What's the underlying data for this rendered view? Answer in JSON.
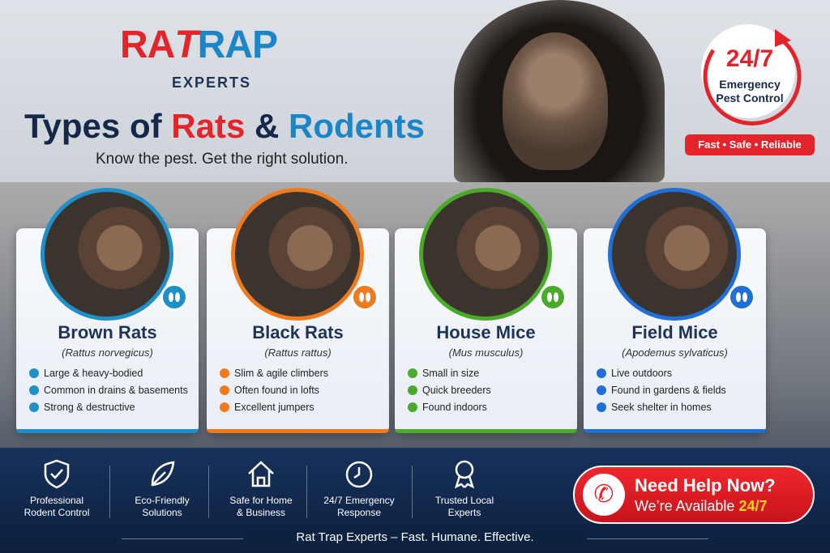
{
  "logo": {
    "part1": "RA",
    "mark": "T",
    "part2": "RAP",
    "sub": "EXPERTS"
  },
  "header": {
    "title_1": "Types of",
    "title_2": "Rats",
    "title_3": "&",
    "title_4": "Rodents",
    "subtitle": "Know the pest. Get the right solution."
  },
  "badge": {
    "hours": "24/7",
    "line1": "Emergency",
    "line2": "Pest Control",
    "tagline": "Fast • Safe • Reliable"
  },
  "cards": [
    {
      "name": "Brown Rats",
      "latin": "(Rattus norvegicus)",
      "color": "#1f8fc7",
      "points": [
        "Large & heavy-bodied",
        "Common in drains & basements",
        "Strong & destructive"
      ]
    },
    {
      "name": "Black Rats",
      "latin": "(Rattus rattus)",
      "color": "#f07b1e",
      "points": [
        "Slim & agile climbers",
        "Often found in lofts",
        "Excellent jumpers"
      ]
    },
    {
      "name": "House Mice",
      "latin": "(Mus musculus)",
      "color": "#4aaa2a",
      "points": [
        "Small in size",
        "Quick breeders",
        "Found indoors"
      ]
    },
    {
      "name": "Field Mice",
      "latin": "(Apodemus sylvaticus)",
      "color": "#1f6fd6",
      "points": [
        "Live outdoors",
        "Found in gardens & fields",
        "Seek shelter in homes"
      ]
    }
  ],
  "features": [
    {
      "lines": [
        "Professional",
        "Rodent Control"
      ]
    },
    {
      "lines": [
        "Eco-Friendly",
        "Solutions"
      ]
    },
    {
      "lines": [
        "Safe for Home",
        "& Business"
      ]
    },
    {
      "lines": [
        "24/7 Emergency",
        "Response"
      ]
    },
    {
      "lines": [
        "Trusted Local",
        "Experts"
      ]
    }
  ],
  "cta": {
    "title": "Need Help Now?",
    "line": "We’re Available",
    "hours": "24/7"
  },
  "footer": {
    "text": "Rat Trap Experts – Fast. Humane. Effective."
  }
}
